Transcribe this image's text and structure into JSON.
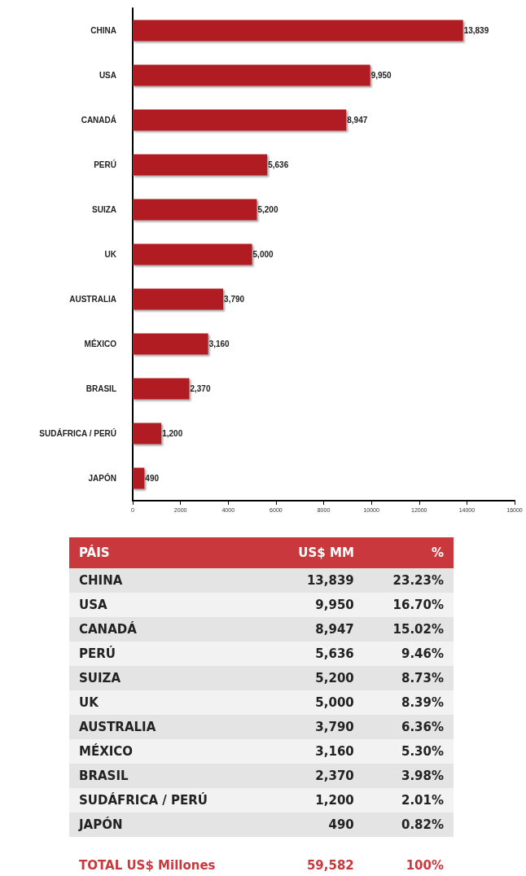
{
  "chart_data": [
    {
      "type": "bar",
      "orientation": "horizontal",
      "categories": [
        "CHINA",
        "USA",
        "CANADÁ",
        "PERÚ",
        "SUIZA",
        "UK",
        "AUSTRALIA",
        "MÉXICO",
        "BRASIL",
        "SUDÁFRICA / PERÚ",
        "JAPÓN"
      ],
      "values": [
        13839,
        9950,
        8947,
        5636,
        5200,
        5000,
        3790,
        3160,
        2370,
        1200,
        490
      ],
      "value_labels": [
        "13,839",
        "9,950",
        "8,947",
        "5,636",
        "5,200",
        "5,000",
        "3,790",
        "3,160",
        "2,370",
        "1,200",
        "490"
      ],
      "color": "#b01e23",
      "xlim": [
        0,
        16000
      ],
      "xticks": [
        0,
        2000,
        4000,
        6000,
        8000,
        10000,
        12000,
        14000,
        16000
      ],
      "grid": false
    },
    {
      "type": "other",
      "xlabel": "PÁIS",
      "categories": [
        "CHINA",
        "USA",
        "CANADÁ",
        "PERÚ",
        "SUIZA",
        "UK",
        "AUSTRALIA",
        "MÉXICO",
        "BRASIL",
        "SUDÁFRICA / PERÚ",
        "JAPÓN"
      ],
      "series": [
        {
          "name": "US$ MM",
          "colors": [
            "#e4e4e4",
            "#f2f2f2",
            "#e4e4e4",
            "#f2f2f2",
            "#e4e4e4",
            "#f2f2f2",
            "#e4e4e4",
            "#f2f2f2",
            "#e4e4e4",
            "#f2f2f2",
            "#e4e4e4"
          ],
          "values": [
            13839,
            9950,
            8947,
            5636,
            5200,
            5000,
            3790,
            3160,
            2370,
            1200,
            490
          ],
          "value_labels": [
            "13,839",
            "9,950",
            "8,947",
            "5,636",
            "5,200",
            "5,000",
            "3,790",
            "3,160",
            "2,370",
            "1,200",
            "490"
          ]
        },
        {
          "name": "%",
          "colors": [
            "#e4e4e4",
            "#f2f2f2",
            "#e4e4e4",
            "#f2f2f2",
            "#e4e4e4",
            "#f2f2f2",
            "#e4e4e4",
            "#f2f2f2",
            "#e4e4e4",
            "#f2f2f2",
            "#e4e4e4"
          ],
          "values": [
            23.23,
            16.7,
            15.02,
            9.46,
            8.73,
            8.39,
            6.36,
            5.3,
            3.98,
            2.01,
            0.82
          ],
          "value_labels": [
            "23.23%",
            "16.70%",
            "15.02%",
            "9.46%",
            "8.73%",
            "8.39%",
            "6.36%",
            "5.30%",
            "3.98%",
            "2.01%",
            "0.82%"
          ]
        }
      ],
      "annotations": [
        "TOTAL US$ Millones"
      ],
      "totals": [
        "59,582",
        "100%"
      ]
    }
  ]
}
